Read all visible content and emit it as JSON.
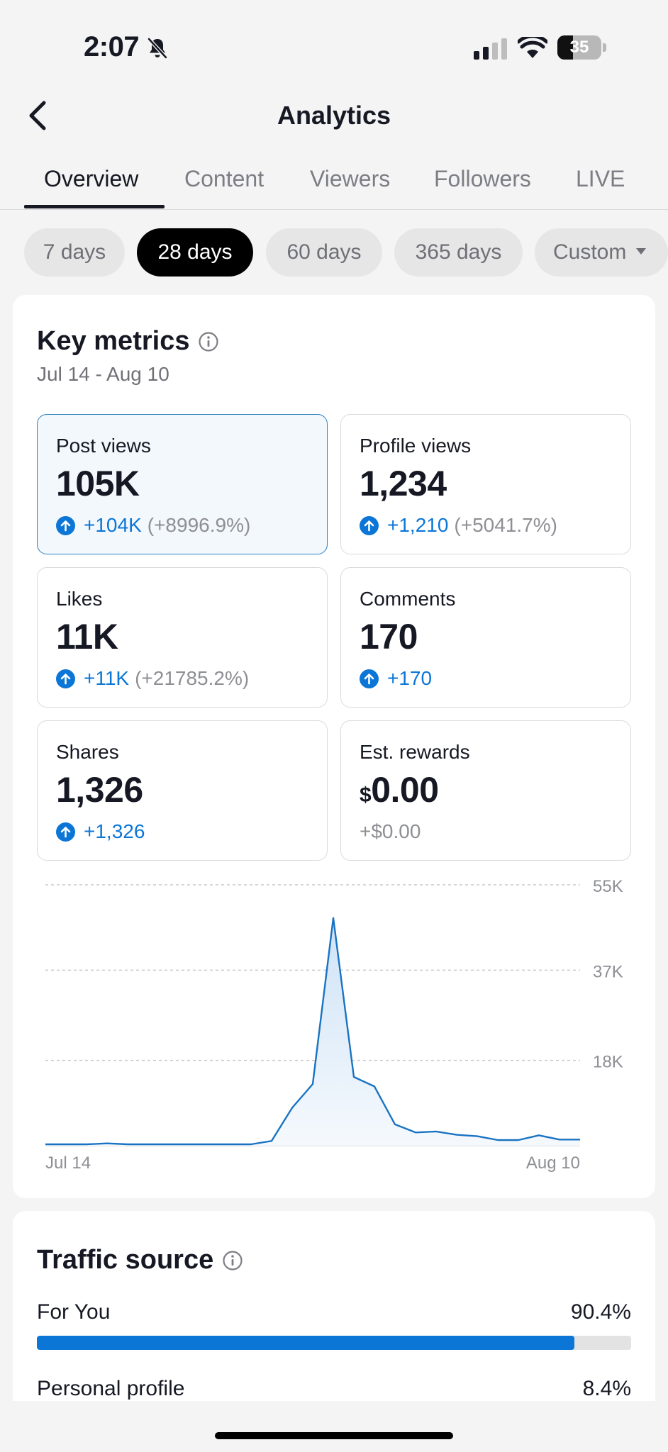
{
  "status": {
    "time": "2:07",
    "battery": "35",
    "battery_level": 0.35
  },
  "header": {
    "title": "Analytics"
  },
  "tabs": [
    {
      "label": "Overview",
      "active": true
    },
    {
      "label": "Content",
      "active": false
    },
    {
      "label": "Viewers",
      "active": false
    },
    {
      "label": "Followers",
      "active": false
    },
    {
      "label": "LIVE",
      "active": false
    }
  ],
  "ranges": [
    {
      "label": "7 days",
      "active": false
    },
    {
      "label": "28 days",
      "active": true
    },
    {
      "label": "60 days",
      "active": false
    },
    {
      "label": "365 days",
      "active": false
    },
    {
      "label": "Custom",
      "active": false
    }
  ],
  "key_metrics": {
    "title": "Key metrics",
    "date_range": "Jul 14 - Aug 10",
    "items": [
      {
        "label": "Post views",
        "value": "105K",
        "delta": "+104K",
        "pct": "(+8996.9%)",
        "selected": true
      },
      {
        "label": "Profile views",
        "value": "1,234",
        "delta": "+1,210",
        "pct": "(+5041.7%)"
      },
      {
        "label": "Likes",
        "value": "11K",
        "delta": "+11K",
        "pct": "(+21785.2%)"
      },
      {
        "label": "Comments",
        "value": "170",
        "delta": "+170",
        "pct": ""
      },
      {
        "label": "Shares",
        "value": "1,326",
        "delta": "+1,326",
        "pct": ""
      },
      {
        "label": "Est. rewards",
        "currency": "$",
        "value": "0.00",
        "delta": "+$0.00",
        "pct": ""
      }
    ]
  },
  "chart_data": {
    "type": "area",
    "series": [
      {
        "values": [
          300,
          300,
          300,
          500,
          300,
          300,
          300,
          300,
          300,
          300,
          300,
          1000,
          8000,
          13000,
          48000,
          14500,
          12500,
          4500,
          2800,
          3000,
          2300,
          2000,
          1200,
          1200,
          2200,
          1300,
          1300
        ]
      }
    ],
    "x_tick_labels": [
      "Jul 14",
      "Aug 10"
    ],
    "y_tick_labels": [
      "55K",
      "37K",
      "18K"
    ],
    "y_ticks": [
      55000,
      37000,
      18000
    ],
    "ylim": [
      0,
      55000
    ],
    "grid": true,
    "color": "#1a73c2"
  },
  "traffic_source": {
    "title": "Traffic source",
    "items": [
      {
        "label": "For You",
        "value": "90.4%",
        "fraction": 0.904
      },
      {
        "label": "Personal profile",
        "value": "8.4%",
        "fraction": 0.084
      }
    ]
  },
  "colors": {
    "accent": "#0b76d6",
    "selected_border": "#2a7fc0",
    "selected_bg": "#f3f8fd"
  }
}
